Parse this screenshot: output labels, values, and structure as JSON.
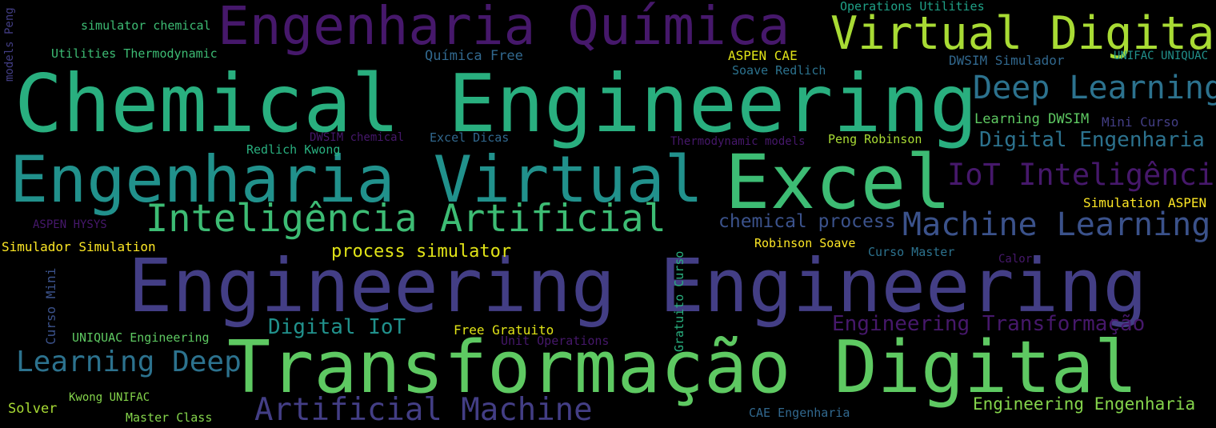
{
  "palette": {
    "background": "#000000",
    "deep_purple": "#46186b",
    "indigo": "#433e85",
    "slate_blue": "#3b528b",
    "steel_blue": "#31688e",
    "teal_blue": "#2c728e",
    "teal": "#21918c",
    "sea_green": "#1fa187",
    "emerald": "#29af7f",
    "mid_green": "#3dbc74",
    "green": "#5ec962",
    "lime": "#84d44b",
    "yellow_green": "#a8db34",
    "yellow": "#e0e317",
    "bright_yellow": "#fde725"
  },
  "words": [
    {
      "id": "chemical-engineering",
      "text": "Chemical Engineering",
      "color": "#29af7f"
    },
    {
      "id": "engineering-engineering",
      "text": "Engineering Engineering",
      "color": "#433e85"
    },
    {
      "id": "transformacao-digital",
      "text": "Transformação Digital",
      "color": "#5ec962"
    },
    {
      "id": "engenharia-quimica",
      "text": "Engenharia Química",
      "color": "#46186b"
    },
    {
      "id": "engenharia-virtual",
      "text": "Engenharia Virtual",
      "color": "#21918c"
    },
    {
      "id": "excel",
      "text": "Excel",
      "color": "#3dbc74"
    },
    {
      "id": "virtual-digital",
      "text": "Virtual Digital",
      "color": "#a8db34"
    },
    {
      "id": "inteligencia-artificial",
      "text": "Inteligência Artificial",
      "color": "#3dbc74"
    },
    {
      "id": "deep-learning",
      "text": "Deep Learning",
      "color": "#2c728e"
    },
    {
      "id": "machine-learning",
      "text": "Machine Learning",
      "color": "#3b528b"
    },
    {
      "id": "iot-inteligencia",
      "text": "IoT Inteligência",
      "color": "#46186b"
    },
    {
      "id": "artificial-machine",
      "text": "Artificial Machine",
      "color": "#433e85"
    },
    {
      "id": "learning-deep",
      "text": "Learning Deep",
      "color": "#2c728e"
    },
    {
      "id": "digital-engenharia",
      "text": "Digital Engenharia",
      "color": "#2c728e"
    },
    {
      "id": "engineering-transformacao",
      "text": "Engineering Transformação",
      "color": "#46186b"
    },
    {
      "id": "digital-iot",
      "text": "Digital IoT",
      "color": "#21918c"
    },
    {
      "id": "chemical-process",
      "text": "chemical process",
      "color": "#3b528b"
    },
    {
      "id": "process-simulator",
      "text": "process simulator",
      "color": "#e0e317"
    },
    {
      "id": "engineering-engenharia",
      "text": "Engineering Engenharia",
      "color": "#84d44b"
    },
    {
      "id": "quimica-free",
      "text": "Química Free",
      "color": "#31688e"
    },
    {
      "id": "aspen-cae",
      "text": "ASPEN CAE",
      "color": "#e0e317"
    },
    {
      "id": "dwsim-simulador",
      "text": "DWSIM Simulador",
      "color": "#31688e"
    },
    {
      "id": "unifac-uniquac",
      "text": "UNIFAC UNIQUAC",
      "color": "#21918c"
    },
    {
      "id": "soave-redlich",
      "text": "Soave Redlich",
      "color": "#2c728e"
    },
    {
      "id": "learning-dwsim",
      "text": "Learning DWSIM",
      "color": "#5ec962"
    },
    {
      "id": "mini-curso",
      "text": "Mini Curso",
      "color": "#433e85"
    },
    {
      "id": "operations-utilities",
      "text": "Operations Utilities",
      "color": "#1fa187"
    },
    {
      "id": "simulator-chemical",
      "text": "simulator chemical",
      "color": "#3dbc74"
    },
    {
      "id": "utilities-thermodynamic",
      "text": "Utilities Thermodynamic",
      "color": "#3dbc74"
    },
    {
      "id": "redlich-kwong",
      "text": "Redlich Kwong",
      "color": "#29af7f"
    },
    {
      "id": "dwsim-chemical",
      "text": "DWSIM chemical",
      "color": "#46186b"
    },
    {
      "id": "excel-dicas",
      "text": "Excel Dicas",
      "color": "#31688e"
    },
    {
      "id": "thermodynamic-models",
      "text": "Thermodynamic models",
      "color": "#46186b"
    },
    {
      "id": "peng-robinson",
      "text": "Peng Robinson",
      "color": "#a8db34"
    },
    {
      "id": "simulation-aspen",
      "text": "Simulation ASPEN",
      "color": "#fde725"
    },
    {
      "id": "aspen-hysys",
      "text": "ASPEN HYSYS",
      "color": "#46186b"
    },
    {
      "id": "simulador-simulation",
      "text": "Simulador Simulation",
      "color": "#fde725"
    },
    {
      "id": "robinson-soave",
      "text": "Robinson Soave",
      "color": "#fde725"
    },
    {
      "id": "curso-master",
      "text": "Curso Master",
      "color": "#2c728e"
    },
    {
      "id": "calor",
      "text": "Calor",
      "color": "#46186b"
    },
    {
      "id": "free-gratuito",
      "text": "Free Gratuito",
      "color": "#e0e317"
    },
    {
      "id": "unit-operations",
      "text": "Unit Operations",
      "color": "#46186b"
    },
    {
      "id": "uniquac-engineering",
      "text": "UNIQUAC Engineering",
      "color": "#5ec962"
    },
    {
      "id": "kwong-unifac",
      "text": "Kwong UNIFAC",
      "color": "#84d44b"
    },
    {
      "id": "solver",
      "text": "Solver",
      "color": "#a8db34"
    },
    {
      "id": "master-class",
      "text": "Master Class",
      "color": "#84d44b"
    },
    {
      "id": "cae-engenharia",
      "text": "CAE Engenharia",
      "color": "#31688e"
    },
    {
      "id": "models-peng",
      "text": "models Peng",
      "color": "#433e85"
    },
    {
      "id": "curso-mini",
      "text": "Curso Mini",
      "color": "#3b528b"
    },
    {
      "id": "gratuito-curso",
      "text": "Gratuito Curso",
      "color": "#29af7f"
    }
  ]
}
